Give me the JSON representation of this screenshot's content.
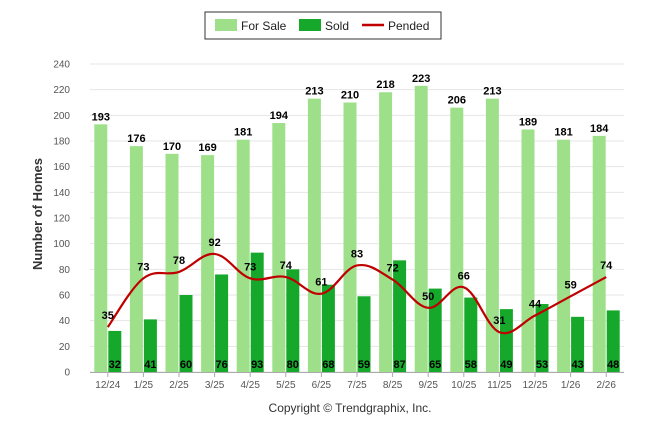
{
  "chart_data": {
    "type": "bar",
    "title": "",
    "xlabel": "",
    "ylabel": "Number of Homes",
    "ylim": [
      0,
      240
    ],
    "yticks": [
      0,
      20,
      40,
      60,
      80,
      100,
      120,
      140,
      160,
      180,
      200,
      220,
      240
    ],
    "categories": [
      "12/24",
      "1/25",
      "2/25",
      "3/25",
      "4/25",
      "5/25",
      "6/25",
      "7/25",
      "8/25",
      "9/25",
      "10/25",
      "11/25",
      "12/25",
      "1/26",
      "2/26"
    ],
    "series": [
      {
        "name": "For Sale",
        "kind": "bar",
        "color": "#9ee08a",
        "values": [
          193,
          176,
          170,
          169,
          181,
          194,
          213,
          210,
          218,
          223,
          206,
          213,
          189,
          181,
          184
        ]
      },
      {
        "name": "Sold",
        "kind": "bar",
        "color": "#15a82a",
        "values": [
          32,
          41,
          60,
          76,
          93,
          80,
          68,
          59,
          87,
          65,
          58,
          49,
          53,
          43,
          48
        ]
      },
      {
        "name": "Pended",
        "kind": "line",
        "color": "#c00000",
        "values": [
          35,
          73,
          78,
          92,
          73,
          74,
          61,
          83,
          72,
          50,
          66,
          31,
          44,
          59,
          74
        ]
      }
    ],
    "legend_position": "top-center",
    "grid": true
  },
  "footer": {
    "copyright": "Copyright © Trendgraphix, Inc."
  }
}
